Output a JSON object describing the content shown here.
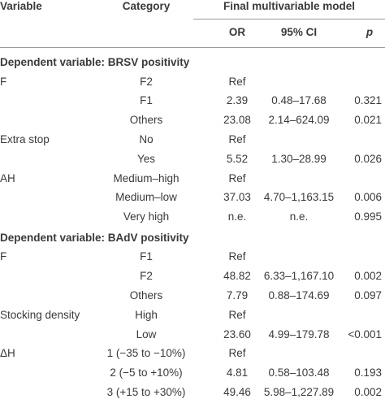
{
  "header": {
    "variable": "Variable",
    "category": "Category",
    "model_title": "Final multivariable model",
    "or": "OR",
    "ci": "95% CI",
    "p": "p"
  },
  "sections": [
    {
      "title": "Dependent variable: BRSV positivity",
      "rows": [
        [
          "F",
          "F2",
          "Ref",
          null,
          null
        ],
        [
          null,
          "F1",
          "2.39",
          "0.48–17.68",
          "0.321"
        ],
        [
          null,
          "Others",
          "23.08",
          "2.14–624.09",
          "0.021"
        ],
        [
          "Extra stop",
          "No",
          "Ref",
          null,
          null
        ],
        [
          null,
          "Yes",
          "5.52",
          "1.30–28.99",
          "0.026"
        ],
        [
          "AH",
          "Medium–high",
          "Ref",
          null,
          null
        ],
        [
          null,
          "Medium–low",
          "37.03",
          "4.70–1,163.15",
          "0.006"
        ],
        [
          null,
          "Very high",
          "n.e.",
          "n.e.",
          "0.995"
        ]
      ]
    },
    {
      "title": "Dependent variable: BAdV positivity",
      "rows": [
        [
          "F",
          "F1",
          "Ref",
          null,
          null
        ],
        [
          null,
          "F2",
          "48.82",
          "6.33–1,167.10",
          "0.002"
        ],
        [
          null,
          "Others",
          "7.79",
          "0.88–174.69",
          "0.097"
        ],
        [
          "Stocking density",
          "High",
          "Ref",
          null,
          null
        ],
        [
          null,
          "Low",
          "23.60",
          "4.99–179.78",
          "<0.001"
        ],
        [
          "ΔH",
          "1 (−35 to −10%)",
          "Ref",
          null,
          null
        ],
        [
          null,
          "2 (−5 to +10%)",
          "4.81",
          "0.58–103.48",
          "0.193"
        ],
        [
          null,
          "3 (+15 to +30%)",
          "49.46",
          "5.98–1,227.89",
          "0.002"
        ]
      ]
    }
  ]
}
